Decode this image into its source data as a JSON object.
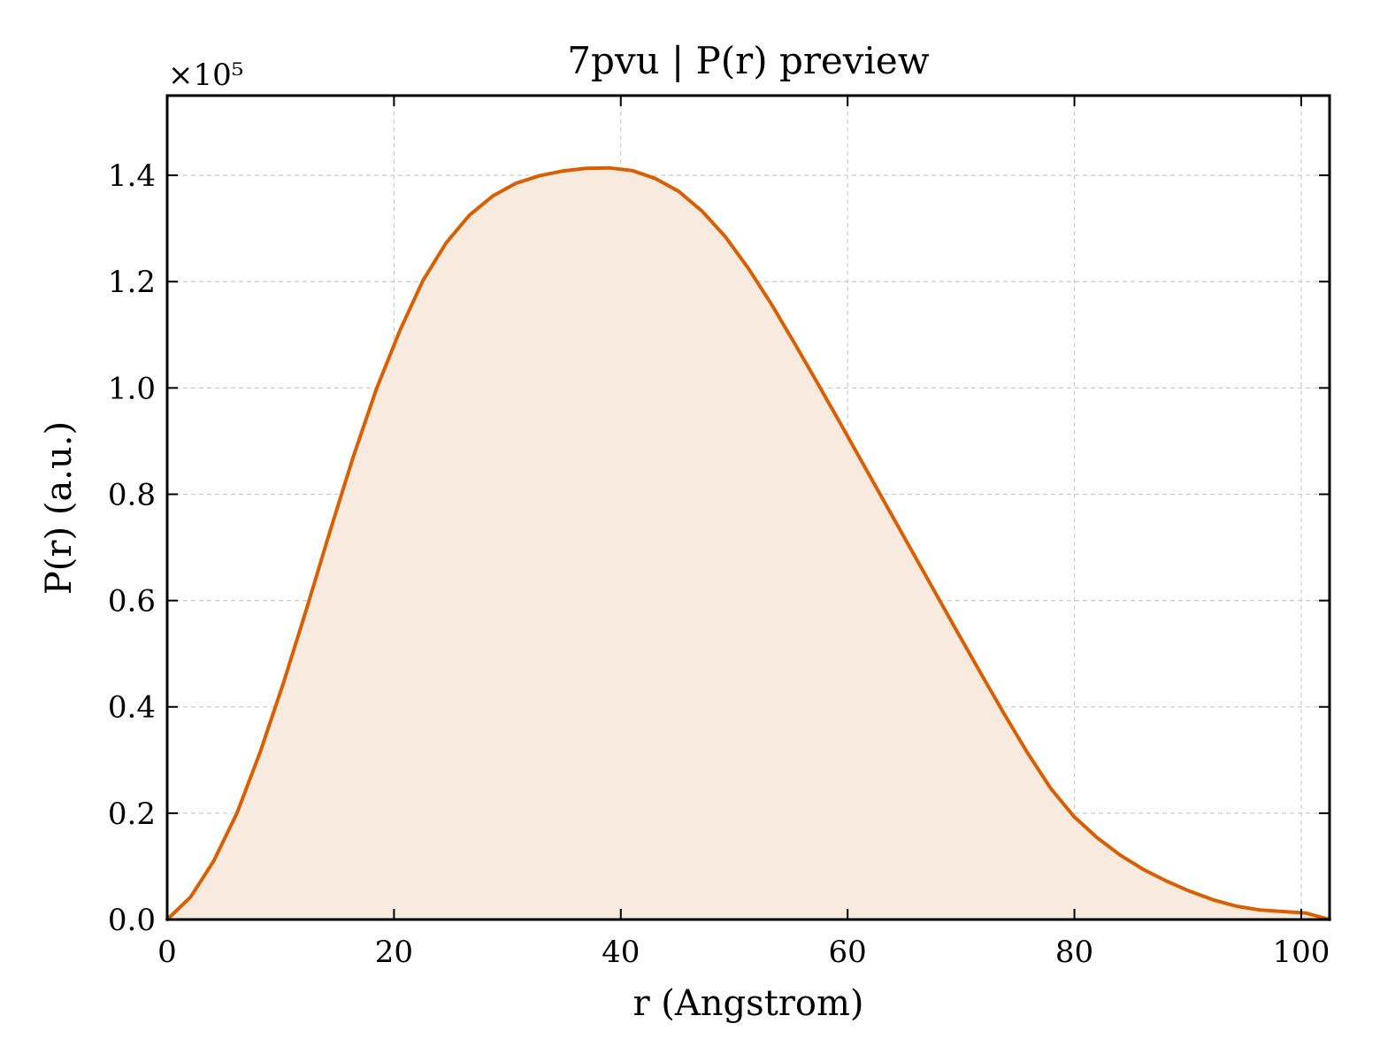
{
  "chart_data": {
    "type": "area",
    "title": "7pvu | P(r) preview",
    "xlabel": "r (Angstrom)",
    "ylabel": "P(r) (a.u.)",
    "y_multiplier_label": "×10⁵",
    "xlim": [
      0,
      102.5
    ],
    "ylim": [
      0,
      155000
    ],
    "x_ticks": [
      0,
      20,
      40,
      60,
      80,
      100
    ],
    "x_tick_labels": [
      "0",
      "20",
      "40",
      "60",
      "80",
      "100"
    ],
    "y_ticks": [
      0,
      20000,
      40000,
      60000,
      80000,
      100000,
      120000,
      140000
    ],
    "y_tick_labels": [
      "0.0",
      "0.2",
      "0.4",
      "0.6",
      "0.8",
      "1.0",
      "1.2",
      "1.4"
    ],
    "grid": true,
    "legend": "none",
    "colors": {
      "line": "#d95f02",
      "fill": "#f8eadf"
    },
    "series": [
      {
        "x": [
          0,
          2.05,
          4.1,
          6.15,
          8.2,
          10.25,
          12.3,
          14.35,
          16.4,
          18.45,
          20.5,
          22.55,
          24.6,
          26.65,
          28.7,
          30.75,
          32.8,
          34.85,
          36.9,
          38.95,
          41.0,
          43.05,
          45.1,
          47.15,
          49.2,
          51.25,
          53.3,
          55.35,
          57.4,
          59.45,
          61.5,
          63.55,
          65.6,
          67.65,
          69.7,
          71.75,
          73.8,
          75.85,
          77.9,
          79.95,
          82.0,
          84.05,
          86.1,
          88.15,
          90.2,
          92.25,
          94.3,
          96.35,
          98.4,
          100.45,
          102.5
        ],
        "values": [
          0,
          4200,
          11000,
          20000,
          31500,
          44500,
          58500,
          73000,
          87000,
          99800,
          110700,
          120200,
          127300,
          132500,
          136100,
          138500,
          139900,
          140800,
          141300,
          141400,
          140900,
          139400,
          137000,
          133300,
          128500,
          122500,
          115700,
          108300,
          100700,
          93000,
          85200,
          77400,
          69600,
          61800,
          54000,
          46300,
          38700,
          31400,
          24700,
          19400,
          15400,
          12100,
          9400,
          7200,
          5300,
          3700,
          2500,
          1800,
          1500,
          1200,
          0
        ]
      }
    ]
  }
}
